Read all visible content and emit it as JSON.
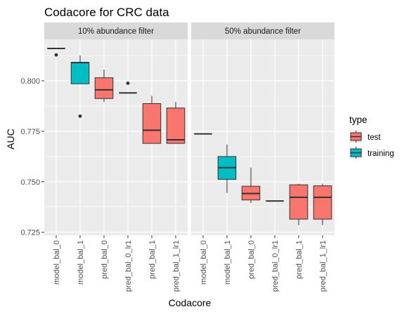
{
  "chart_data": {
    "type": "boxplot",
    "title": "Codacore for CRC data",
    "xlabel": "Codacore",
    "ylabel": "AUC",
    "ylim": [
      0.7235,
      0.8205
    ],
    "yticks": [
      0.725,
      0.75,
      0.775,
      0.8
    ],
    "ytick_labels": [
      "0.725",
      "0.750",
      "0.775",
      "0.800"
    ],
    "categories": [
      "model_bal_0",
      "model_bal_1",
      "pred_bal_0",
      "pred_bal_0_lr1",
      "pred_bal_1",
      "pred_bal_1_lr1"
    ],
    "grid": true,
    "legend": {
      "title": "type",
      "position": "right",
      "entries": [
        {
          "label": "test",
          "color": "#F8766D"
        },
        {
          "label": "training",
          "color": "#00BFC4"
        }
      ]
    },
    "panels": [
      {
        "strip": "10% abundance filter",
        "boxes": [
          {
            "category": "model_bal_0",
            "type": "training",
            "min": 0.816,
            "q1": 0.816,
            "median": 0.816,
            "q3": 0.816,
            "max": 0.816,
            "outliers": [
              0.8128
            ]
          },
          {
            "category": "model_bal_1",
            "type": "training",
            "min": 0.7985,
            "q1": 0.7985,
            "median": 0.809,
            "q3": 0.809,
            "max": 0.8125,
            "outliers": [
              0.7825
            ]
          },
          {
            "category": "pred_bal_0",
            "type": "test",
            "min": 0.7895,
            "q1": 0.7912,
            "median": 0.7955,
            "q3": 0.8015,
            "max": 0.8055,
            "outliers": []
          },
          {
            "category": "pred_bal_0_lr1",
            "type": "test",
            "min": 0.794,
            "q1": 0.794,
            "median": 0.794,
            "q3": 0.794,
            "max": 0.794,
            "outliers": [
              0.7988
            ]
          },
          {
            "category": "pred_bal_1",
            "type": "test",
            "min": 0.769,
            "q1": 0.769,
            "median": 0.7755,
            "q3": 0.7887,
            "max": 0.7925,
            "outliers": []
          },
          {
            "category": "pred_bal_1_lr1",
            "type": "test",
            "min": 0.769,
            "q1": 0.769,
            "median": 0.7708,
            "q3": 0.7865,
            "max": 0.7895,
            "outliers": []
          }
        ]
      },
      {
        "strip": "50% abundance filter",
        "boxes": [
          {
            "category": "model_bal_0",
            "type": "training",
            "min": 0.7737,
            "q1": 0.7737,
            "median": 0.7737,
            "q3": 0.7737,
            "max": 0.7737,
            "outliers": []
          },
          {
            "category": "model_bal_1",
            "type": "training",
            "min": 0.7445,
            "q1": 0.7512,
            "median": 0.757,
            "q3": 0.7625,
            "max": 0.7685,
            "outliers": []
          },
          {
            "category": "pred_bal_0",
            "type": "test",
            "min": 0.7395,
            "q1": 0.741,
            "median": 0.7442,
            "q3": 0.7478,
            "max": 0.757,
            "outliers": []
          },
          {
            "category": "pred_bal_0_lr1",
            "type": "test",
            "min": 0.7405,
            "q1": 0.7405,
            "median": 0.7405,
            "q3": 0.7405,
            "max": 0.7405,
            "outliers": []
          },
          {
            "category": "pred_bal_1",
            "type": "test",
            "min": 0.7285,
            "q1": 0.7315,
            "median": 0.7423,
            "q3": 0.7485,
            "max": 0.749,
            "outliers": []
          },
          {
            "category": "pred_bal_1_lr1",
            "type": "test",
            "min": 0.7285,
            "q1": 0.7315,
            "median": 0.7423,
            "q3": 0.748,
            "max": 0.749,
            "outliers": []
          }
        ]
      }
    ]
  }
}
